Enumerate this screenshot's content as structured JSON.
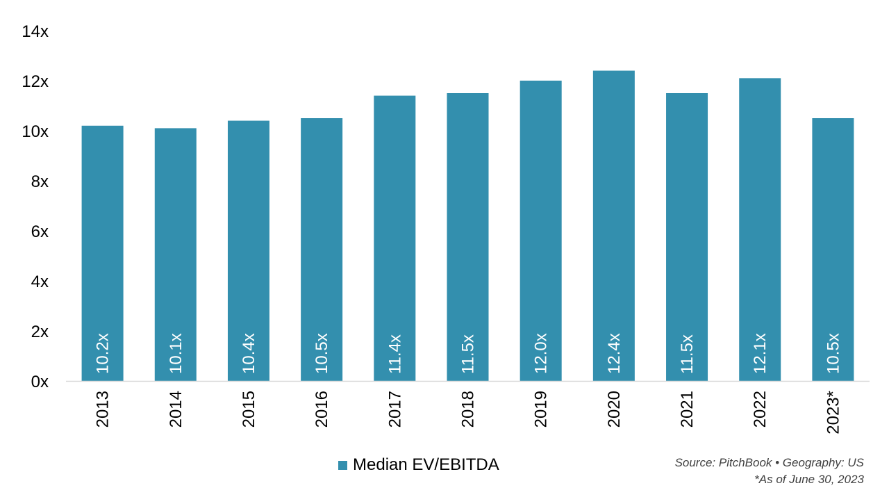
{
  "chart_data": {
    "type": "bar",
    "categories": [
      "2013",
      "2014",
      "2015",
      "2016",
      "2017",
      "2018",
      "2019",
      "2020",
      "2021",
      "2022",
      "2023*"
    ],
    "series": [
      {
        "name": "Median EV/EBITDA",
        "values": [
          10.2,
          10.1,
          10.4,
          10.5,
          11.4,
          11.5,
          12.0,
          12.4,
          11.5,
          12.1,
          10.5
        ],
        "labels": [
          "10.2x",
          "10.1x",
          "10.4x",
          "10.5x",
          "11.4x",
          "11.5x",
          "12.0x",
          "12.4x",
          "11.5x",
          "12.1x",
          "10.5x"
        ]
      }
    ],
    "y_ticks": [
      "0x",
      "2x",
      "4x",
      "6x",
      "8x",
      "10x",
      "12x",
      "14x"
    ],
    "ylim": [
      0,
      14
    ],
    "ystep": 2,
    "grid": false,
    "legend_position": "bottom",
    "colors": {
      "bar": "#338fae",
      "bar_label": "#ffffff",
      "axis": "#d9d9d9",
      "text": "#000000"
    }
  },
  "footer": {
    "source_line": "Source: PitchBook •  Geography: US",
    "note_line": "*As of June 30, 2023"
  }
}
